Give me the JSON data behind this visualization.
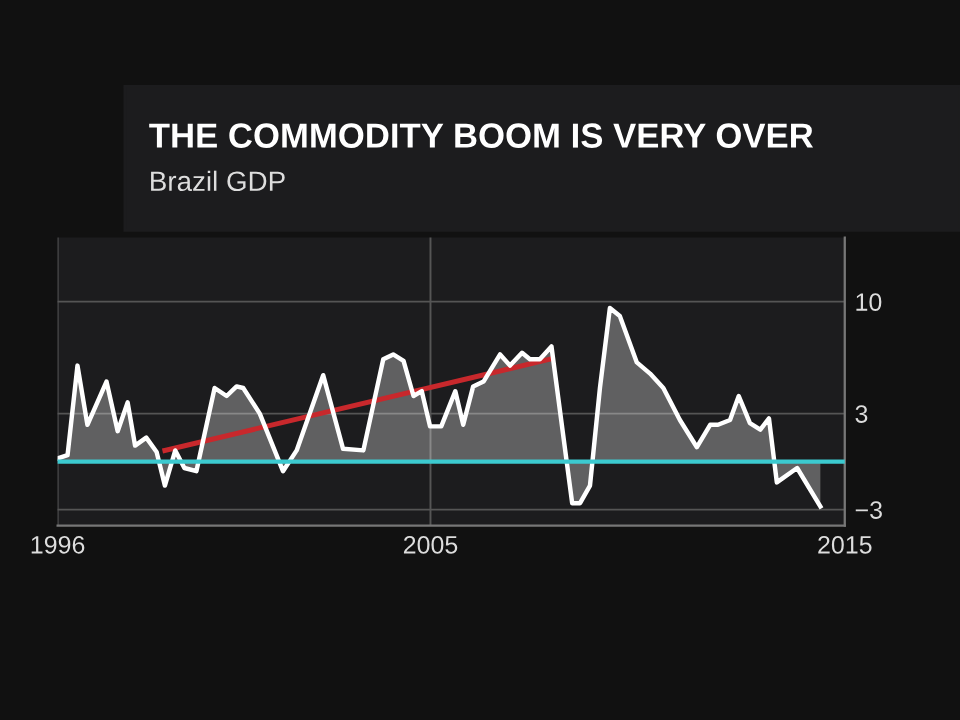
{
  "chart_data": {
    "type": "area",
    "title": "THE COMMODITY BOOM IS VERY OVER",
    "subtitle": "Brazil GDP",
    "xlim": [
      1996,
      2015
    ],
    "xticks": [
      1996,
      2005,
      2015
    ],
    "ylim": [
      -4,
      14
    ],
    "yticks": [
      10,
      3,
      -3
    ],
    "grid": true,
    "series": [
      {
        "color": "#ffffff",
        "x": [
          1996.0,
          1996.24,
          1996.48,
          1996.72,
          1997.18,
          1997.45,
          1997.69,
          1997.87,
          1998.14,
          1998.39,
          1998.59,
          1998.84,
          1999.06,
          1999.35,
          1999.79,
          2000.08,
          2000.32,
          2000.48,
          2000.88,
          2001.44,
          2001.77,
          2002.41,
          2002.89,
          2003.38,
          2003.86,
          2004.1,
          2004.35,
          2004.59,
          2004.79,
          2004.99,
          2005.26,
          2005.6,
          2005.79,
          2006.03,
          2006.28,
          2006.68,
          2006.92,
          2007.21,
          2007.4,
          2007.64,
          2007.92,
          2008.42,
          2008.61,
          2008.85,
          2009.09,
          2009.33,
          2009.57,
          2009.98,
          2010.3,
          2010.62,
          2011.02,
          2011.43,
          2011.75,
          2011.94,
          2012.23,
          2012.44,
          2012.71,
          2012.96,
          2013.17,
          2013.36,
          2013.85,
          2014.41
        ],
        "values": [
          0.2,
          0.4,
          6.0,
          2.3,
          5.0,
          1.9,
          3.7,
          1.0,
          1.5,
          0.6,
          -1.5,
          0.7,
          -0.4,
          -0.6,
          4.6,
          4.1,
          4.7,
          4.6,
          3.0,
          -0.6,
          0.7,
          5.4,
          0.8,
          0.7,
          6.4,
          6.7,
          6.3,
          4.1,
          4.4,
          2.2,
          2.2,
          4.4,
          2.3,
          4.7,
          5.0,
          6.7,
          6.0,
          6.8,
          6.4,
          6.4,
          7.2,
          -2.6,
          -2.6,
          -1.5,
          4.6,
          9.6,
          9.1,
          6.2,
          5.5,
          4.6,
          2.6,
          0.9,
          2.3,
          2.3,
          2.6,
          4.1,
          2.4,
          2.0,
          2.7,
          -1.3,
          -0.4,
          -2.8
        ]
      },
      {
        "type": "line",
        "color": "#c8282c",
        "x": [
          1998.59,
          2007.88
        ],
        "values": [
          0.7,
          6.4
        ]
      }
    ],
    "ref_lines": [
      {
        "axis": "y",
        "value": 0,
        "color": "#3ccad0"
      }
    ]
  }
}
